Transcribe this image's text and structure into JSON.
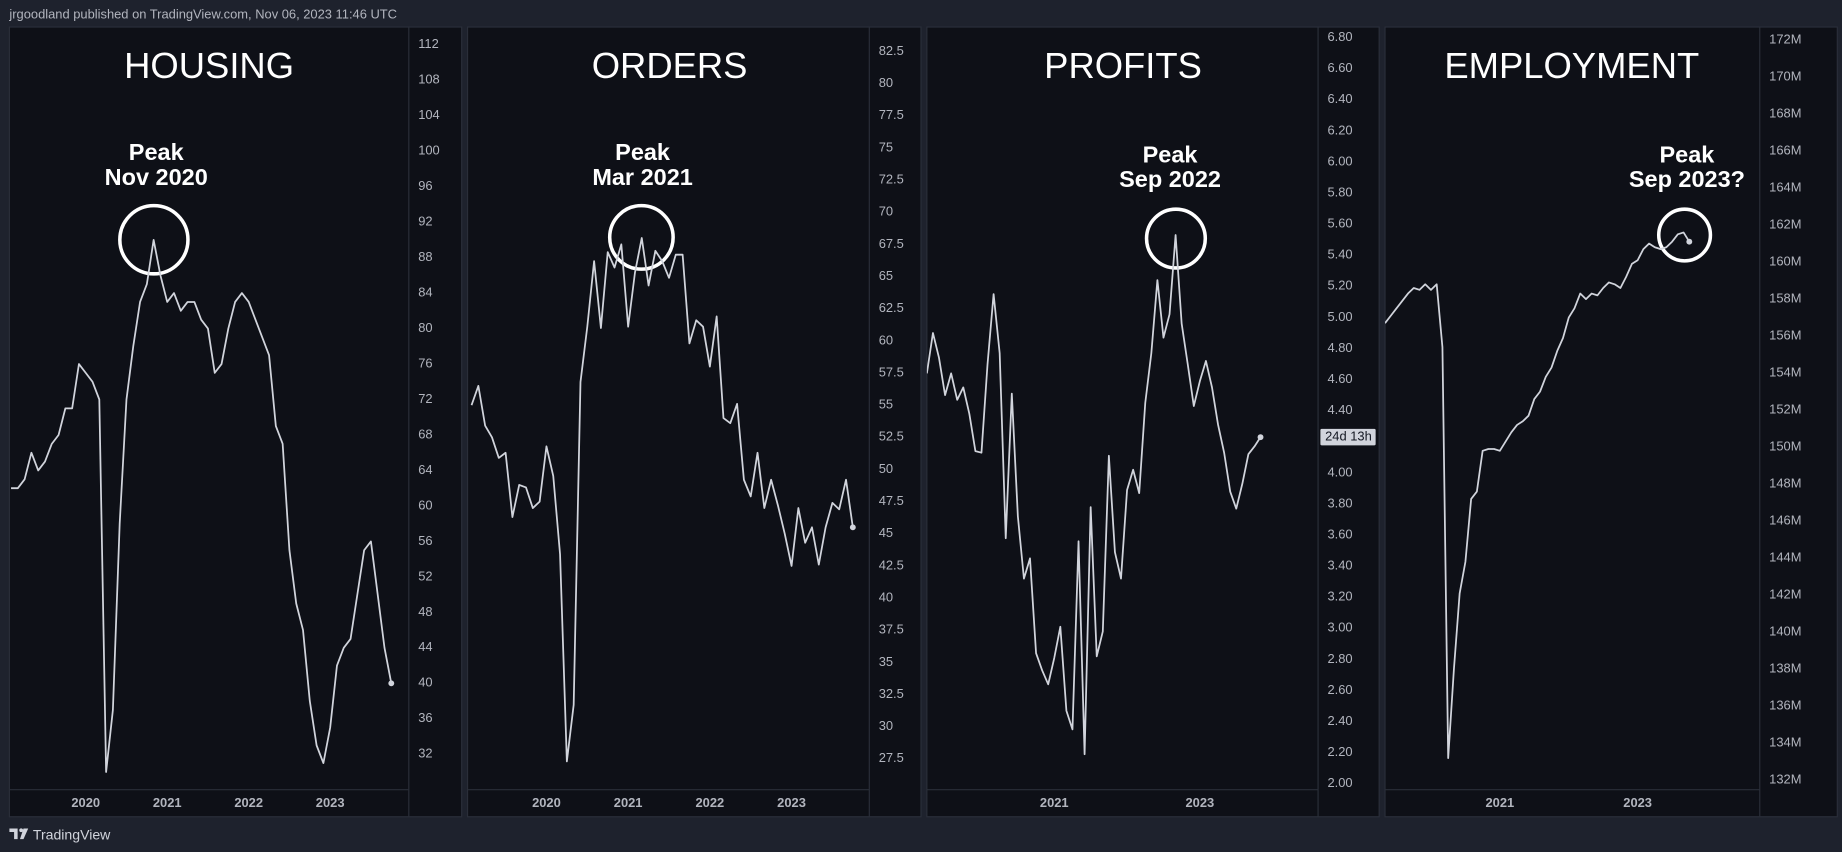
{
  "header": {
    "text": "jrgoodland published on TradingView.com, Nov 06, 2023 11:46 UTC"
  },
  "footer": {
    "brand": "TradingView"
  },
  "chart_data": [
    {
      "type": "line",
      "title": "HOUSING",
      "annotation": [
        "Peak",
        "Nov 2020"
      ],
      "color": "#d1d4dc",
      "grid": false,
      "categories": [
        null,
        null,
        null,
        null,
        null,
        null,
        null,
        null,
        null,
        null,
        null,
        "2020",
        null,
        null,
        null,
        null,
        null,
        null,
        null,
        null,
        null,
        null,
        null,
        "2021",
        null,
        null,
        null,
        null,
        null,
        null,
        null,
        null,
        null,
        null,
        null,
        "2022",
        null,
        null,
        null,
        null,
        null,
        null,
        null,
        null,
        null,
        null,
        null,
        "2023",
        null,
        null,
        null,
        null,
        null,
        null,
        null,
        null,
        null
      ],
      "values": [
        62,
        62,
        63,
        66,
        64,
        65,
        67,
        68,
        71,
        71,
        76,
        75,
        74,
        72,
        30,
        37,
        58,
        72,
        78,
        83,
        85,
        90,
        86,
        83,
        84,
        82,
        83,
        83,
        81,
        80,
        75,
        76,
        80,
        83,
        84,
        83,
        81,
        79,
        77,
        69,
        67,
        55,
        49,
        46,
        38,
        33,
        31,
        35,
        42,
        44,
        45,
        50,
        55,
        56,
        50,
        44,
        40
      ],
      "ylim": [
        28,
        114
      ],
      "yticks": [
        32,
        36,
        40,
        44,
        48,
        52,
        56,
        60,
        64,
        68,
        72,
        76,
        80,
        84,
        88,
        92,
        96,
        100,
        104,
        108,
        112
      ]
    },
    {
      "type": "line",
      "title": "ORDERS",
      "annotation": [
        "Peak",
        "Mar 2021"
      ],
      "color": "#d1d4dc",
      "grid": false,
      "categories": [
        null,
        null,
        null,
        null,
        null,
        null,
        null,
        null,
        null,
        null,
        null,
        "2020",
        null,
        null,
        null,
        null,
        null,
        null,
        null,
        null,
        null,
        null,
        null,
        "2021",
        null,
        null,
        null,
        null,
        null,
        null,
        null,
        null,
        null,
        null,
        null,
        "2022",
        null,
        null,
        null,
        null,
        null,
        null,
        null,
        null,
        null,
        null,
        null,
        "2023",
        null,
        null,
        null,
        null,
        null,
        null,
        null,
        null,
        null
      ],
      "values": [
        55.0,
        56.5,
        53.4,
        52.5,
        50.9,
        51.3,
        46.3,
        48.8,
        48.6,
        47.0,
        47.5,
        51.8,
        49.5,
        43.4,
        27.3,
        31.7,
        56.8,
        61.1,
        66.2,
        61.0,
        66.9,
        65.7,
        67.5,
        61.1,
        65.3,
        68.0,
        64.3,
        67.0,
        66.2,
        64.9,
        66.7,
        66.7,
        59.8,
        61.6,
        61.1,
        58.0,
        61.9,
        54.0,
        53.6,
        55.1,
        49.2,
        47.9,
        51.3,
        47.0,
        49.2,
        47.2,
        45.0,
        42.5,
        47.0,
        44.3,
        45.5,
        42.6,
        45.5,
        47.4,
        46.9,
        49.2,
        45.5
      ],
      "ylim": [
        25.1,
        84.4
      ],
      "yticks": [
        27.5,
        30,
        32.5,
        35,
        37.5,
        40,
        42.5,
        45,
        47.5,
        50,
        52.5,
        55,
        57.5,
        60,
        62.5,
        65,
        67.5,
        70,
        72.5,
        75,
        77.5,
        80,
        82.5
      ]
    },
    {
      "type": "line",
      "title": "PROFITS",
      "annotation": [
        "Peak",
        "Sep 2022"
      ],
      "color": "#d1d4dc",
      "grid": false,
      "countdown": "24d 13h",
      "categories": [
        null,
        null,
        null,
        null,
        null,
        null,
        null,
        null,
        null,
        null,
        null,
        null,
        null,
        null,
        null,
        null,
        null,
        null,
        null,
        null,
        null,
        "2021",
        null,
        null,
        null,
        null,
        null,
        null,
        null,
        null,
        null,
        null,
        null,
        null,
        null,
        null,
        null,
        null,
        null,
        null,
        null,
        null,
        null,
        null,
        null,
        "2023",
        null,
        null,
        null,
        null,
        null,
        null,
        null,
        null,
        null,
        null
      ],
      "values": [
        4.64,
        4.9,
        4.74,
        4.5,
        4.64,
        4.47,
        4.55,
        4.38,
        4.14,
        4.13,
        4.7,
        5.15,
        4.77,
        3.58,
        4.51,
        3.72,
        3.32,
        3.45,
        2.84,
        2.73,
        2.64,
        2.81,
        3.01,
        2.47,
        2.35,
        3.56,
        2.19,
        3.78,
        2.82,
        2.98,
        4.11,
        3.49,
        3.32,
        3.89,
        4.02,
        3.87,
        4.45,
        4.77,
        5.24,
        4.87,
        5.02,
        5.53,
        4.96,
        4.7,
        4.43,
        4.59,
        4.72,
        4.55,
        4.31,
        4.13,
        3.88,
        3.77,
        3.93,
        4.12,
        4.17,
        4.23
      ],
      "ylim": [
        1.962,
        6.868
      ],
      "yticks": [
        {
          "value": 2.0,
          "label": "2.00"
        },
        {
          "value": 2.2,
          "label": "2.20"
        },
        {
          "value": 2.4,
          "label": "2.40"
        },
        {
          "value": 2.6,
          "label": "2.60"
        },
        {
          "value": 2.8,
          "label": "2.80"
        },
        {
          "value": 3.0,
          "label": "3.00"
        },
        {
          "value": 3.2,
          "label": "3.20"
        },
        {
          "value": 3.4,
          "label": "3.40"
        },
        {
          "value": 3.6,
          "label": "3.60"
        },
        {
          "value": 3.8,
          "label": "3.80"
        },
        {
          "value": 4.0,
          "label": "4.00"
        },
        {
          "value": 4.2,
          "label": "4.20"
        },
        {
          "value": 4.4,
          "label": "4.40"
        },
        {
          "value": 4.6,
          "label": "4.60"
        },
        {
          "value": 4.8,
          "label": "4.80"
        },
        {
          "value": 5.0,
          "label": "5.00"
        },
        {
          "value": 5.2,
          "label": "5.20"
        },
        {
          "value": 5.4,
          "label": "5.40"
        },
        {
          "value": 5.6,
          "label": "5.60"
        },
        {
          "value": 5.8,
          "label": "5.80"
        },
        {
          "value": 6.0,
          "label": "6.00"
        },
        {
          "value": 6.2,
          "label": "6.20"
        },
        {
          "value": 6.4,
          "label": "6.40"
        },
        {
          "value": 6.6,
          "label": "6.60"
        },
        {
          "value": 6.8,
          "label": "6.80"
        }
      ]
    },
    {
      "type": "line",
      "title": "EMPLOYMENT",
      "annotation": [
        "Peak",
        "Sep 2023?"
      ],
      "color": "#d1d4dc",
      "grid": false,
      "categories": [
        null,
        null,
        null,
        null,
        null,
        null,
        null,
        null,
        null,
        null,
        null,
        null,
        null,
        null,
        null,
        null,
        null,
        null,
        null,
        null,
        "2021",
        null,
        null,
        null,
        null,
        null,
        null,
        null,
        null,
        null,
        null,
        null,
        null,
        null,
        null,
        null,
        null,
        null,
        null,
        null,
        null,
        null,
        null,
        null,
        "2023",
        null,
        null,
        null,
        null,
        null,
        null,
        null,
        null,
        null
      ],
      "values": [
        156.7,
        157.1,
        157.5,
        157.9,
        158.3,
        158.6,
        158.5,
        158.8,
        158.5,
        158.8,
        155.4,
        133.2,
        138.0,
        142.1,
        143.8,
        147.2,
        147.6,
        149.8,
        149.9,
        149.9,
        149.8,
        150.3,
        150.8,
        151.2,
        151.4,
        151.7,
        152.6,
        153.0,
        153.8,
        154.3,
        155.2,
        155.9,
        157.0,
        157.5,
        158.3,
        158.0,
        158.3,
        158.2,
        158.6,
        158.9,
        158.8,
        158.6,
        159.2,
        159.9,
        160.1,
        160.7,
        161.0,
        160.8,
        160.7,
        160.8,
        161.1,
        161.5,
        161.6,
        161.1
      ],
      "ylim": [
        131.49,
        172.7
      ],
      "yticks": [
        {
          "value": 132,
          "label": "132M"
        },
        {
          "value": 134,
          "label": "134M"
        },
        {
          "value": 136,
          "label": "136M"
        },
        {
          "value": 138,
          "label": "138M"
        },
        {
          "value": 140,
          "label": "140M"
        },
        {
          "value": 142,
          "label": "142M"
        },
        {
          "value": 144,
          "label": "144M"
        },
        {
          "value": 146,
          "label": "146M"
        },
        {
          "value": 148,
          "label": "148M"
        },
        {
          "value": 150,
          "label": "150M"
        },
        {
          "value": 152,
          "label": "152M"
        },
        {
          "value": 154,
          "label": "154M"
        },
        {
          "value": 156,
          "label": "156M"
        },
        {
          "value": 158,
          "label": "158M"
        },
        {
          "value": 160,
          "label": "160M"
        },
        {
          "value": 162,
          "label": "162M"
        },
        {
          "value": 164,
          "label": "164M"
        },
        {
          "value": 166,
          "label": "166M"
        },
        {
          "value": 168,
          "label": "168M"
        },
        {
          "value": 170,
          "label": "170M"
        },
        {
          "value": 172,
          "label": "172M"
        }
      ]
    }
  ]
}
